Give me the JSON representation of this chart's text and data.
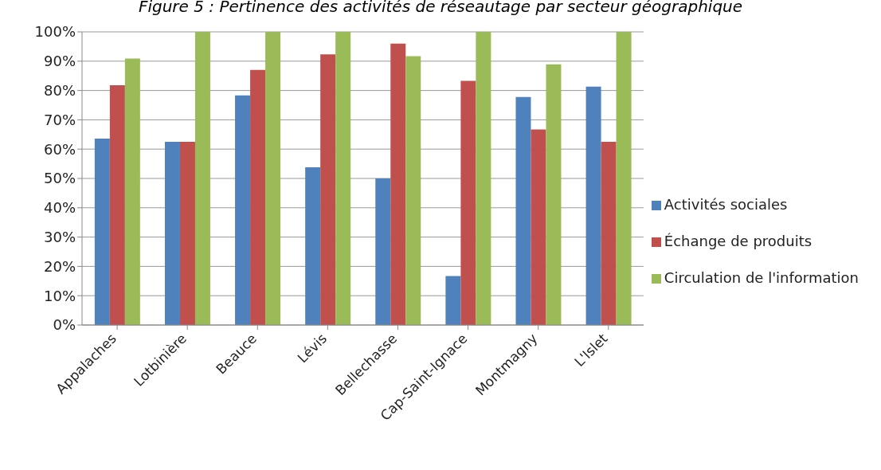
{
  "chart_data": {
    "type": "bar",
    "title": "Figure 5 : Pertinence des activités de réseautage par secteur géographique",
    "categories": [
      "Appalaches",
      "Lotbinière",
      "Beauce",
      "Lévis",
      "Bellechasse",
      "Cap-Saint-Ignace",
      "Montmagny",
      "L'Islet"
    ],
    "series": [
      {
        "name": "Activités sociales",
        "color": "#4f81bd",
        "values": [
          63.6,
          62.5,
          78.3,
          53.8,
          50,
          16.7,
          77.8,
          81.3
        ]
      },
      {
        "name": "Échange de produits",
        "color": "#c0504d",
        "values": [
          81.8,
          62.5,
          87,
          92.3,
          96,
          83.3,
          66.7,
          62.5
        ]
      },
      {
        "name": "Circulation de l'information",
        "color": "#9bbb59",
        "values": [
          90.9,
          100,
          100,
          100,
          91.7,
          100,
          88.9,
          100
        ]
      }
    ],
    "ylim": [
      0,
      100
    ],
    "yticks": [
      {
        "value": 0,
        "label": "0%"
      },
      {
        "value": 10,
        "label": "10%"
      },
      {
        "value": 20,
        "label": "20%"
      },
      {
        "value": 30,
        "label": "30%"
      },
      {
        "value": 40,
        "label": "40%"
      },
      {
        "value": 50,
        "label": "50%"
      },
      {
        "value": 60,
        "label": "60%"
      },
      {
        "value": 70,
        "label": "70%"
      },
      {
        "value": 80,
        "label": "80%"
      },
      {
        "value": 90,
        "label": "90%"
      },
      {
        "value": 100,
        "label": "100%"
      }
    ],
    "grid": "y",
    "legend": "right"
  }
}
